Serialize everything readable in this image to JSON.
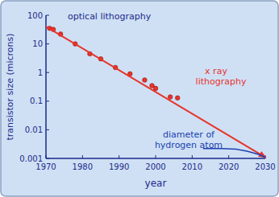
{
  "chart_data": {
    "type": "scatter",
    "x_label": "year",
    "y_label": "transistor size (microns)",
    "xlim": [
      1970,
      2030
    ],
    "xticks": [
      1970,
      1980,
      1990,
      2000,
      2010,
      2020,
      2030
    ],
    "ylim": [
      0.001,
      100
    ],
    "yticks": [
      0.001,
      0.01,
      0.1,
      1,
      10,
      100
    ],
    "log": "y",
    "grid": false,
    "series": [
      {
        "name": "optical lithography",
        "type": "scatter",
        "color": "#e8342a",
        "marker": "circle",
        "x": [
          1971,
          1972,
          1974,
          1978,
          1982,
          1985,
          1989,
          1993,
          1997,
          1999,
          2000,
          2004,
          2006
        ],
        "values": [
          35,
          32,
          22,
          10,
          4.5,
          3,
          1.5,
          0.9,
          0.55,
          0.35,
          0.28,
          0.14,
          0.13
        ]
      },
      {
        "name": "x ray lithography",
        "type": "line",
        "color": "#e8342a",
        "line_style": "arrow",
        "x": [
          1970,
          2030
        ],
        "values": [
          40,
          0.0011
        ]
      },
      {
        "name": "diameter of hydrogen atom",
        "type": "line",
        "color": "#2040b0",
        "line_style": "solid",
        "x": [
          2013,
          2018,
          2022,
          2025,
          2028,
          2030
        ],
        "values": [
          0.0022,
          0.0022,
          0.0021,
          0.0018,
          0.0014,
          0.0011
        ]
      }
    ]
  }
}
